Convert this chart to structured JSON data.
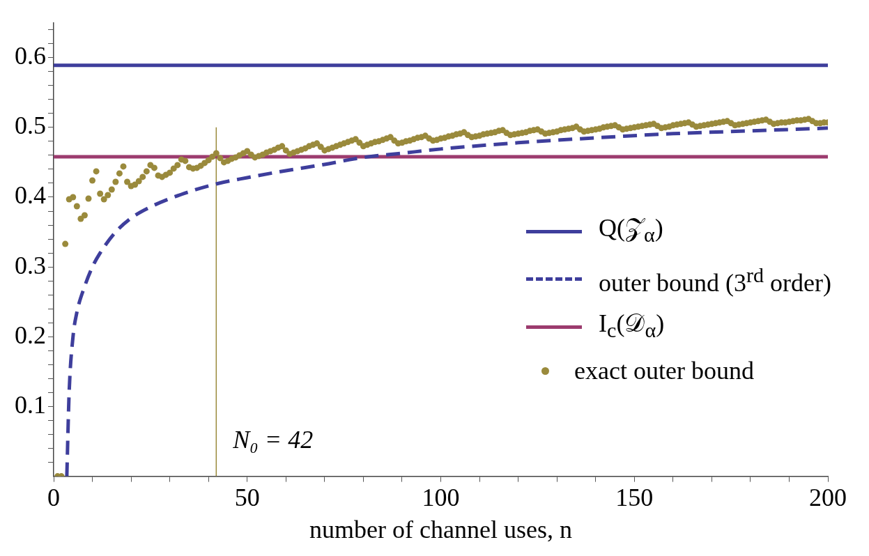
{
  "chart_data": {
    "type": "line",
    "xlabel": "number of channel uses, n",
    "xlim": [
      0,
      200
    ],
    "xticks": [
      0,
      {
        "value": 10,
        "label": null
      },
      {
        "value": 20,
        "label": null
      },
      {
        "value": 30,
        "label": null
      },
      {
        "value": 40,
        "label": null
      },
      50,
      {
        "value": 60,
        "label": null
      },
      {
        "value": 70,
        "label": null
      },
      {
        "value": 80,
        "label": null
      },
      {
        "value": 90,
        "label": null
      },
      100,
      {
        "value": 110,
        "label": null
      },
      {
        "value": 120,
        "label": null
      },
      {
        "value": 130,
        "label": null
      },
      {
        "value": 140,
        "label": null
      },
      150,
      {
        "value": 160,
        "label": null
      },
      {
        "value": 170,
        "label": null
      },
      {
        "value": 180,
        "label": null
      },
      {
        "value": 190,
        "label": null
      },
      200
    ],
    "ylim": [
      0,
      0.65
    ],
    "yticks": [
      {
        "value": 0.02,
        "label": null
      },
      {
        "value": 0.04,
        "label": null
      },
      {
        "value": 0.06,
        "label": null
      },
      {
        "value": 0.08,
        "label": null
      },
      0.1,
      {
        "value": 0.12,
        "label": null
      },
      {
        "value": 0.14,
        "label": null
      },
      {
        "value": 0.16,
        "label": null
      },
      {
        "value": 0.18,
        "label": null
      },
      0.2,
      {
        "value": 0.22,
        "label": null
      },
      {
        "value": 0.24,
        "label": null
      },
      {
        "value": 0.26,
        "label": null
      },
      {
        "value": 0.28,
        "label": null
      },
      0.3,
      {
        "value": 0.32,
        "label": null
      },
      {
        "value": 0.34,
        "label": null
      },
      {
        "value": 0.36,
        "label": null
      },
      {
        "value": 0.38,
        "label": null
      },
      0.4,
      {
        "value": 0.42,
        "label": null
      },
      {
        "value": 0.44,
        "label": null
      },
      {
        "value": 0.46,
        "label": null
      },
      {
        "value": 0.48,
        "label": null
      },
      0.5,
      {
        "value": 0.52,
        "label": null
      },
      {
        "value": 0.54,
        "label": null
      },
      {
        "value": 0.56,
        "label": null
      },
      {
        "value": 0.58,
        "label": null
      },
      0.6,
      {
        "value": 0.62,
        "label": null
      },
      {
        "value": 0.64,
        "label": null
      }
    ],
    "grid": false,
    "legend": "right",
    "annotations": [
      {
        "text": "N₀ = 42",
        "x": 42,
        "y": 0.05
      }
    ],
    "series": [
      {
        "name": "Q(𝒵$_{α}$)",
        "type": "line",
        "color": "#3e3e9c",
        "line_style": "solid",
        "marker": "none",
        "x": [
          0,
          200
        ],
        "values": [
          0.589,
          0.589
        ]
      },
      {
        "name": "outer bound (3$^{rd}$ order)",
        "type": "line",
        "color": "#3e3e9c",
        "line_style": "dashed",
        "marker": "none",
        "x": [
          3.4,
          4,
          5,
          6,
          8,
          10,
          12,
          16,
          20,
          25,
          33,
          42,
          50,
          60,
          70,
          80,
          90,
          100,
          120,
          140,
          160,
          180,
          200
        ],
        "values": [
          0,
          0.12,
          0.2,
          0.235,
          0.272,
          0.3,
          0.32,
          0.35,
          0.37,
          0.386,
          0.404,
          0.419,
          0.428,
          0.438,
          0.447,
          0.457,
          0.463,
          0.469,
          0.478,
          0.485,
          0.491,
          0.495,
          0.499
        ]
      },
      {
        "name": "I$_{c}$(𝒟$_{α}$)",
        "type": "line",
        "color": "#9c3b6e",
        "line_style": "solid",
        "marker": "none",
        "x": [
          0,
          200
        ],
        "values": [
          0.458,
          0.458
        ]
      },
      {
        "type": "line",
        "color": "#9a8a3c",
        "line_style": "solid",
        "marker": "none",
        "x": [
          42,
          42
        ],
        "values": [
          0,
          0.5
        ]
      },
      {
        "name": "exact outer bound",
        "type": "scatter",
        "color": "#9a8a3c",
        "marker": "circle",
        "x": [
          1,
          2,
          3,
          4,
          5,
          6,
          7,
          8,
          9,
          10,
          11,
          12,
          13,
          14,
          15,
          16,
          17,
          18,
          19,
          20,
          21,
          22,
          23,
          24,
          25,
          26,
          27,
          28,
          29,
          30,
          31,
          32,
          33,
          34,
          35,
          36,
          37,
          38,
          39,
          40,
          41,
          42,
          43,
          44,
          45,
          46,
          47,
          48,
          49,
          50,
          51,
          52,
          53,
          54,
          55,
          56,
          57,
          58,
          59,
          60,
          61,
          62,
          63,
          64,
          65,
          66,
          67,
          68,
          69,
          70,
          71,
          72,
          73,
          74,
          75,
          76,
          77,
          78,
          79,
          80,
          81,
          82,
          83,
          84,
          85,
          86,
          87,
          88,
          89,
          90,
          91,
          92,
          93,
          94,
          95,
          96,
          97,
          98,
          99,
          100,
          101,
          102,
          103,
          104,
          105,
          106,
          107,
          108,
          109,
          110,
          111,
          112,
          113,
          114,
          115,
          116,
          117,
          118,
          119,
          120,
          121,
          122,
          123,
          124,
          125,
          126,
          127,
          128,
          129,
          130,
          131,
          132,
          133,
          134,
          135,
          136,
          137,
          138,
          139,
          140,
          141,
          142,
          143,
          144,
          145,
          146,
          147,
          148,
          149,
          150,
          151,
          152,
          153,
          154,
          155,
          156,
          157,
          158,
          159,
          160,
          161,
          162,
          163,
          164,
          165,
          166,
          167,
          168,
          169,
          170,
          171,
          172,
          173,
          174,
          175,
          176,
          177,
          178,
          179,
          180,
          181,
          182,
          183,
          184,
          185,
          186,
          187,
          188,
          189,
          190,
          191,
          192,
          193,
          194,
          195,
          196,
          197,
          198,
          199,
          200
        ],
        "values": [
          0,
          0,
          0.333,
          0.397,
          0.4,
          0.387,
          0.369,
          0.374,
          0.398,
          0.424,
          0.437,
          0.405,
          0.397,
          0.403,
          0.411,
          0.422,
          0.434,
          0.444,
          0.422,
          0.416,
          0.418,
          0.423,
          0.429,
          0.437,
          0.446,
          0.442,
          0.431,
          0.429,
          0.432,
          0.435,
          0.441,
          0.446,
          0.454,
          0.452,
          0.443,
          0.441,
          0.442,
          0.445,
          0.449,
          0.453,
          0.458,
          0.463,
          0.456,
          0.45,
          0.452,
          0.455,
          0.457,
          0.46,
          0.463,
          0.466,
          0.461,
          0.457,
          0.459,
          0.461,
          0.464,
          0.466,
          0.468,
          0.471,
          0.473,
          0.467,
          0.462,
          0.464,
          0.466,
          0.468,
          0.47,
          0.473,
          0.475,
          0.477,
          0.472,
          0.467,
          0.469,
          0.471,
          0.473,
          0.475,
          0.477,
          0.479,
          0.481,
          0.483,
          0.478,
          0.473,
          0.475,
          0.477,
          0.479,
          0.48,
          0.482,
          0.484,
          0.486,
          0.481,
          0.477,
          0.478,
          0.48,
          0.481,
          0.483,
          0.485,
          0.486,
          0.488,
          0.484,
          0.481,
          0.482,
          0.484,
          0.485,
          0.487,
          0.488,
          0.49,
          0.491,
          0.493,
          0.489,
          0.486,
          0.487,
          0.488,
          0.49,
          0.491,
          0.492,
          0.493,
          0.495,
          0.496,
          0.492,
          0.489,
          0.49,
          0.491,
          0.492,
          0.493,
          0.495,
          0.496,
          0.497,
          0.494,
          0.491,
          0.492,
          0.493,
          0.494,
          0.496,
          0.497,
          0.498,
          0.499,
          0.501,
          0.497,
          0.494,
          0.495,
          0.496,
          0.497,
          0.498,
          0.5,
          0.501,
          0.502,
          0.503,
          0.5,
          0.497,
          0.498,
          0.499,
          0.5,
          0.501,
          0.502,
          0.503,
          0.504,
          0.505,
          0.502,
          0.499,
          0.5,
          0.501,
          0.503,
          0.504,
          0.505,
          0.506,
          0.507,
          0.504,
          0.501,
          0.502,
          0.503,
          0.504,
          0.505,
          0.506,
          0.507,
          0.508,
          0.509,
          0.506,
          0.503,
          0.504,
          0.505,
          0.506,
          0.507,
          0.508,
          0.509,
          0.51,
          0.511,
          0.508,
          0.505,
          0.506,
          0.507,
          0.507,
          0.508,
          0.509,
          0.51,
          0.51,
          0.511,
          0.512,
          0.509,
          0.506,
          0.506,
          0.507,
          0.507
        ]
      }
    ]
  }
}
